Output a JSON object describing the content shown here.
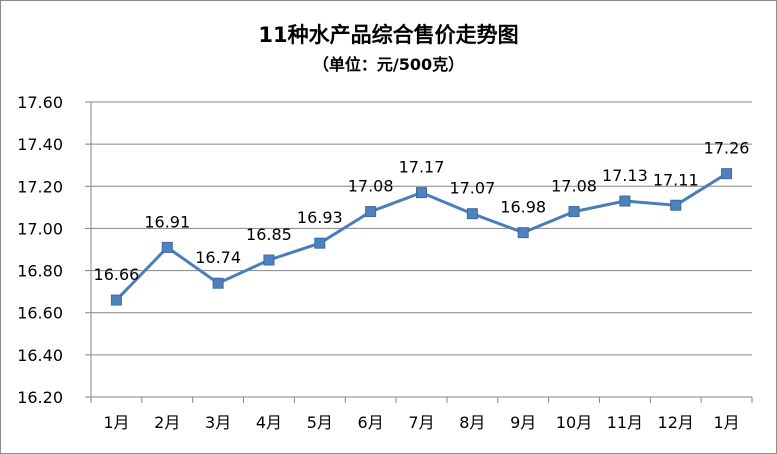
{
  "chart_data": {
    "type": "line",
    "title": "11种水产品综合售价走势图",
    "subtitle": "（单位：元/500克）",
    "categories": [
      "1月",
      "2月",
      "3月",
      "4月",
      "5月",
      "6月",
      "7月",
      "8月",
      "9月",
      "10月",
      "11月",
      "12月",
      "1月"
    ],
    "series": [
      {
        "values": [
          16.66,
          16.91,
          16.74,
          16.85,
          16.93,
          17.08,
          17.17,
          17.07,
          16.98,
          17.08,
          17.13,
          17.11,
          17.26
        ]
      }
    ],
    "data_labels": [
      "16.66",
      "16.91",
      "16.74",
      "16.85",
      "16.93",
      "17.08",
      "17.17",
      "17.07",
      "16.98",
      "17.08",
      "17.13",
      "17.11",
      "17.26"
    ],
    "yticks": [
      "16.20",
      "16.40",
      "16.60",
      "16.80",
      "17.00",
      "17.20",
      "17.40",
      "17.60"
    ],
    "ylim": [
      16.2,
      17.6
    ],
    "grid": true,
    "legend": "none",
    "line_color": "#4a7ebb",
    "marker_color": "#4f81bd"
  }
}
